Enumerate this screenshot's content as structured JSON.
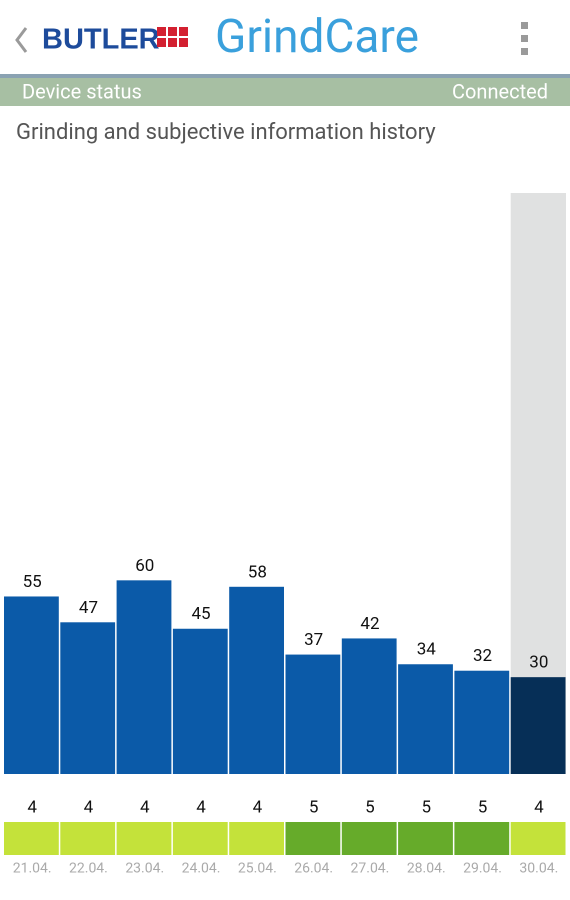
{
  "header": {
    "brand": "BUTLER",
    "app": "GrindCare"
  },
  "status": {
    "label": "Device status",
    "value": "Connected"
  },
  "chart_data": {
    "type": "bar",
    "title": "Grinding and subjective information history",
    "categories": [
      "21.04.",
      "22.04.",
      "23.04.",
      "24.04.",
      "25.04.",
      "26.04.",
      "27.04.",
      "28.04.",
      "29.04.",
      "30.04."
    ],
    "values": [
      55,
      47,
      60,
      45,
      58,
      37,
      42,
      34,
      32,
      30
    ],
    "colors": [
      "#0b5aa8",
      "#0b5aa8",
      "#0b5aa8",
      "#0b5aa8",
      "#0b5aa8",
      "#0b5aa8",
      "#0b5aa8",
      "#0b5aa8",
      "#0b5aa8",
      "#062f57"
    ],
    "selected": 9,
    "selection_color": "#e0e1e1",
    "ylim": [
      0,
      180
    ],
    "scores": {
      "values": [
        4,
        4,
        4,
        4,
        4,
        5,
        5,
        5,
        5,
        4
      ],
      "colors": [
        "#c4e23a",
        "#c4e23a",
        "#c4e23a",
        "#c4e23a",
        "#c4e23a",
        "#66ab2a",
        "#66ab2a",
        "#66ab2a",
        "#66ab2a",
        "#c4e23a"
      ]
    }
  }
}
